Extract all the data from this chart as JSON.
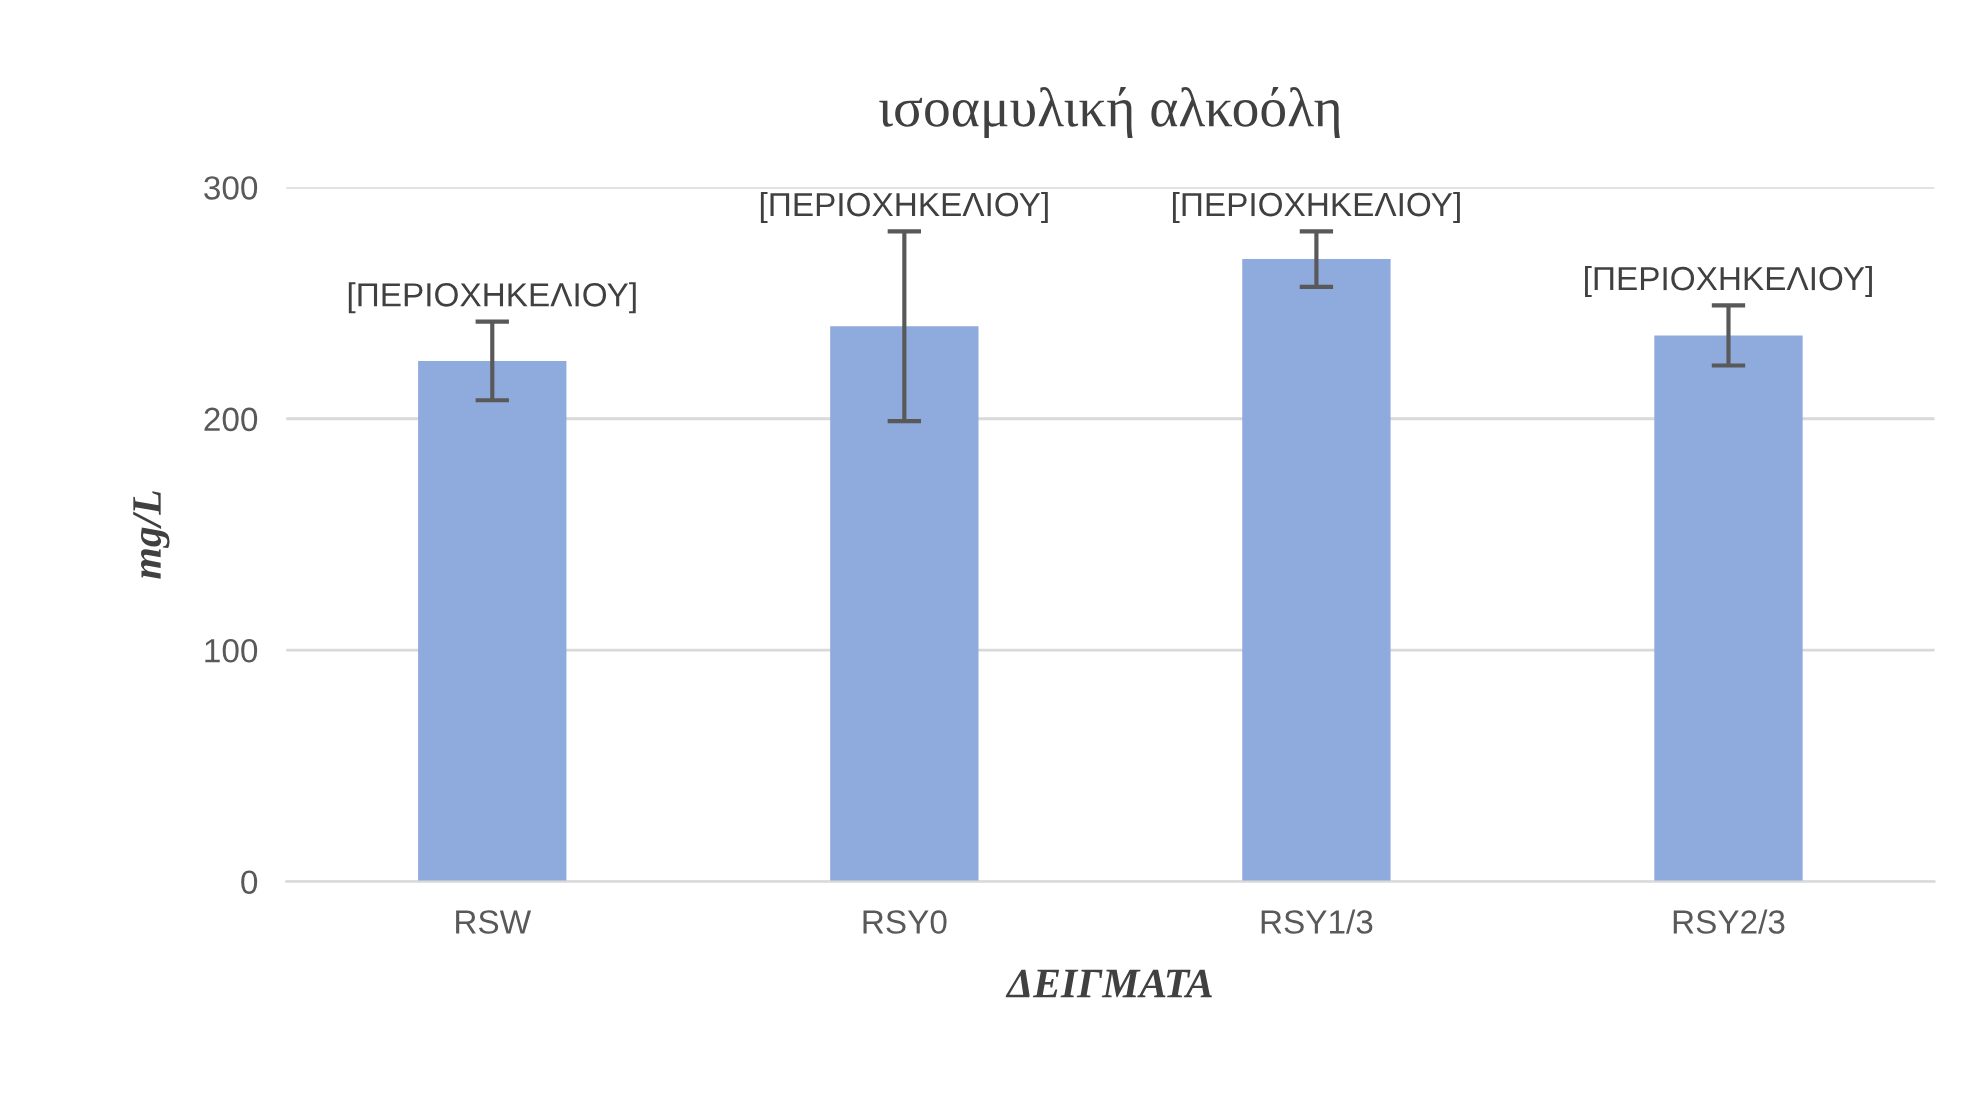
{
  "chart_data": {
    "type": "bar",
    "title": "ισοαμυλική αλκοόλη",
    "xlabel": "ΔΕΙΓΜΑΤΑ",
    "ylabel": "mg/L",
    "categories": [
      "RSW",
      "RSY0",
      "RSY1/3",
      "RSY2/3"
    ],
    "values": [
      225,
      240,
      269,
      236
    ],
    "errors": [
      17,
      41,
      12,
      13
    ],
    "color": "#8faadc",
    "value_labels": [
      "[ΠΕΡΙΟΧΗΚΕΛΙΟΥ]",
      "[ΠΕΡΙΟΧΗΚΕΛΙΟΥ]",
      "[ΠΕΡΙΟΧΗΚΕΛΙΟΥ]",
      "[ΠΕΡΙΟΧΗΚΕΛΙΟΥ]"
    ],
    "ylim": [
      0,
      300
    ],
    "yticks": [
      0,
      100,
      200,
      300
    ],
    "grid": "y",
    "legend": false
  }
}
